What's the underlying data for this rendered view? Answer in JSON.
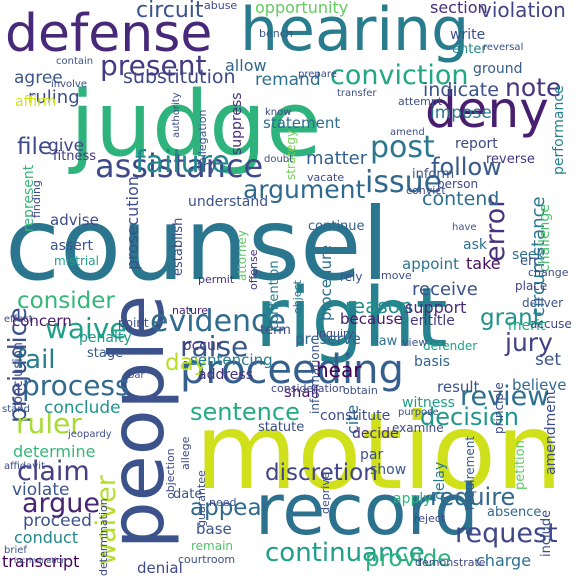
{
  "words": [
    {
      "text": "counsel",
      "color": "#2a768e"
    },
    {
      "text": "judge",
      "color": "#2eb37c"
    },
    {
      "text": "motion",
      "color": "#d0e11c"
    },
    {
      "text": "right",
      "color": "#26828e"
    },
    {
      "text": "people",
      "color": "#3b528b"
    },
    {
      "text": "record",
      "color": "#2c718e"
    },
    {
      "text": "hearing",
      "color": "#287c8e"
    },
    {
      "text": "defense",
      "color": "#482979"
    },
    {
      "text": "deny",
      "color": "#481f70"
    },
    {
      "text": "proceeding",
      "color": "#355f8d"
    },
    {
      "text": "assistance",
      "color": "#3e4989"
    },
    {
      "text": "conviction",
      "color": "#22a785"
    },
    {
      "text": "issue",
      "color": "#31688e"
    },
    {
      "text": "failure",
      "color": "#24878e"
    },
    {
      "text": "evidence",
      "color": "#2f6c8e"
    },
    {
      "text": "waive",
      "color": "#1fa088"
    },
    {
      "text": "raise",
      "color": "#38598c"
    },
    {
      "text": "process",
      "color": "#306a8e"
    },
    {
      "text": "argument",
      "color": "#30698e"
    },
    {
      "text": "present",
      "color": "#443b84"
    },
    {
      "text": "prejudice",
      "color": "#3b518b"
    },
    {
      "text": "error",
      "color": "#46327e"
    },
    {
      "text": "continuance",
      "color": "#1f9e89"
    },
    {
      "text": "ruler",
      "color": "#a8db34"
    },
    {
      "text": "waiver",
      "color": "#b5de2b"
    },
    {
      "text": "sentence",
      "color": "#25ab82"
    },
    {
      "text": "argue",
      "color": "#482475"
    },
    {
      "text": "claim",
      "color": "#433e85"
    },
    {
      "text": "review",
      "color": "#2d708e"
    },
    {
      "text": "request",
      "color": "#3f4788"
    },
    {
      "text": "decision",
      "color": "#1f988b"
    },
    {
      "text": "discretion",
      "color": "#404688"
    },
    {
      "text": "require",
      "color": "#31688e"
    },
    {
      "text": "post",
      "color": "#2a778e"
    },
    {
      "text": "consider",
      "color": "#35b779"
    },
    {
      "text": "fail",
      "color": "#277f8e"
    },
    {
      "text": "jury",
      "color": "#424086"
    },
    {
      "text": "grant",
      "color": "#21918c"
    },
    {
      "text": "circuit",
      "color": "#3a538b"
    },
    {
      "text": "day",
      "color": "#bade28"
    },
    {
      "text": "note",
      "color": "#453581"
    },
    {
      "text": "follow",
      "color": "#38598c"
    },
    {
      "text": "file",
      "color": "#3e4a89"
    },
    {
      "text": "appear",
      "color": "#2f6b8e"
    },
    {
      "text": "provide",
      "color": "#2db27d"
    },
    {
      "text": "violation",
      "color": "#414487"
    },
    {
      "text": "hear",
      "color": "#440154"
    },
    {
      "text": "reason",
      "color": "#21908d"
    },
    {
      "text": "contend",
      "color": "#2e6e8e"
    },
    {
      "text": "matter",
      "color": "#34618d"
    },
    {
      "text": "substitution",
      "color": "#3f4889"
    },
    {
      "text": "prosecution",
      "color": "#3e4c8a"
    },
    {
      "text": "remand",
      "color": "#2d718e"
    },
    {
      "text": "indicate",
      "color": "#3b518b"
    },
    {
      "text": "impose",
      "color": "#2a788e"
    },
    {
      "text": "section",
      "color": "#46307e"
    },
    {
      "text": "opportunity",
      "color": "#63cb5f"
    },
    {
      "text": "allow",
      "color": "#32658e"
    },
    {
      "text": "write",
      "color": "#3c4f8a"
    },
    {
      "text": "enter",
      "color": "#24868e"
    },
    {
      "text": "ruling",
      "color": "#3d4d8a"
    },
    {
      "text": "agree",
      "color": "#39568c"
    },
    {
      "text": "affirm",
      "color": "#d2e21b"
    },
    {
      "text": "give",
      "color": "#3e4989"
    },
    {
      "text": "fitness",
      "color": "#453781"
    },
    {
      "text": "represent",
      "color": "#37b878"
    },
    {
      "text": "advise",
      "color": "#3d4d8a"
    },
    {
      "text": "assert",
      "color": "#3a548c"
    },
    {
      "text": "mistrial",
      "color": "#20a386"
    },
    {
      "text": "concern",
      "color": "#481b6d"
    },
    {
      "text": "conclude",
      "color": "#1f968b"
    },
    {
      "text": "determine",
      "color": "#35b779"
    },
    {
      "text": "violate",
      "color": "#39568c"
    },
    {
      "text": "proceed",
      "color": "#3b518b"
    },
    {
      "text": "conduct",
      "color": "#23888e"
    },
    {
      "text": "transcript",
      "color": "#440154"
    },
    {
      "text": "because",
      "color": "#48186a"
    },
    {
      "text": "support",
      "color": "#472c7a"
    },
    {
      "text": "entitle",
      "color": "#453882"
    },
    {
      "text": "receive",
      "color": "#3b528b"
    },
    {
      "text": "take",
      "color": "#470d60"
    },
    {
      "text": "ask",
      "color": "#2c728e"
    },
    {
      "text": "seek",
      "color": "#2e6f8e"
    },
    {
      "text": "person",
      "color": "#3e4989"
    },
    {
      "text": "inform",
      "color": "#39558c"
    },
    {
      "text": "report",
      "color": "#3f4788"
    },
    {
      "text": "reverse",
      "color": "#443983"
    },
    {
      "text": "strategy",
      "color": "#75d054"
    },
    {
      "text": "suppress",
      "color": "#472e7c"
    },
    {
      "text": "statement",
      "color": "#2e6d8e"
    },
    {
      "text": "understand",
      "color": "#3b528b"
    },
    {
      "text": "continue",
      "color": "#34618d"
    },
    {
      "text": "procedure",
      "color": "#2d708e"
    },
    {
      "text": "ground",
      "color": "#365d8d"
    },
    {
      "text": "circumstance",
      "color": "#2a788e"
    },
    {
      "text": "performance",
      "color": "#26818e"
    },
    {
      "text": "challenge",
      "color": "#4ac16d"
    },
    {
      "text": "sentencing",
      "color": "#287d8e"
    },
    {
      "text": "term",
      "color": "#3f4889"
    },
    {
      "text": "occur",
      "color": "#472f7d"
    },
    {
      "text": "preserve",
      "color": "#32658e"
    },
    {
      "text": "cite",
      "color": "#2b748e"
    },
    {
      "text": "shall",
      "color": "#481769"
    },
    {
      "text": "address",
      "color": "#46337f"
    },
    {
      "text": "result",
      "color": "#3b528b"
    },
    {
      "text": "witness",
      "color": "#1f9f88"
    },
    {
      "text": "set",
      "color": "#3a548c"
    },
    {
      "text": "believe",
      "color": "#31688e"
    },
    {
      "text": "amendment",
      "color": "#3d4e8a"
    },
    {
      "text": "stage",
      "color": "#38588c"
    },
    {
      "text": "point",
      "color": "#3c4f8a"
    },
    {
      "text": "penalty",
      "color": "#1f9a8a"
    },
    {
      "text": "conclusion",
      "color": "#3e4989"
    },
    {
      "text": "effect",
      "color": "#3f4889"
    },
    {
      "text": "establish",
      "color": "#3d4d8a"
    },
    {
      "text": "attorney",
      "color": "#5cc863"
    },
    {
      "text": "offense",
      "color": "#46327e"
    },
    {
      "text": "permit",
      "color": "#46307e"
    },
    {
      "text": "nature",
      "color": "#482071"
    },
    {
      "text": "contention",
      "color": "#287c8e"
    },
    {
      "text": "object",
      "color": "#2b758e"
    },
    {
      "text": "rely",
      "color": "#3b518b"
    },
    {
      "text": "move",
      "color": "#3d4e8a"
    },
    {
      "text": "appoint",
      "color": "#2c738e"
    },
    {
      "text": "defender",
      "color": "#1fa287"
    },
    {
      "text": "deliver",
      "color": "#3a548c"
    },
    {
      "text": "merit",
      "color": "#26ad81"
    },
    {
      "text": "accuse",
      "color": "#3f4788"
    },
    {
      "text": "place",
      "color": "#404588"
    },
    {
      "text": "change",
      "color": "#3e4c8a"
    },
    {
      "text": "err",
      "color": "#39558c"
    },
    {
      "text": "law",
      "color": "#2d708e"
    },
    {
      "text": "basis",
      "color": "#32658e"
    },
    {
      "text": "principle",
      "color": "#3e4989"
    },
    {
      "text": "view",
      "color": "#3b528b"
    },
    {
      "text": "inquiry",
      "color": "#3e4c8a"
    },
    {
      "text": "information",
      "color": "#3a548c"
    },
    {
      "text": "obtain",
      "color": "#3b528b"
    },
    {
      "text": "consideration",
      "color": "#3f4788"
    },
    {
      "text": "decide",
      "color": "#46327e"
    },
    {
      "text": "examine",
      "color": "#3e4989"
    },
    {
      "text": "constitute",
      "color": "#3c4f8a"
    },
    {
      "text": "statute",
      "color": "#3d4d8a"
    },
    {
      "text": "par",
      "color": "#3c508b"
    },
    {
      "text": "delay",
      "color": "#2a778e"
    },
    {
      "text": "deprive",
      "color": "#3d4e8a"
    },
    {
      "text": "show",
      "color": "#39558c"
    },
    {
      "text": "apply",
      "color": "#2eb37c"
    },
    {
      "text": "requirement",
      "color": "#38598c"
    },
    {
      "text": "reject",
      "color": "#3e4a89"
    },
    {
      "text": "petition",
      "color": "#5ec962"
    },
    {
      "text": "include",
      "color": "#3c508b"
    },
    {
      "text": "absence",
      "color": "#30698e"
    },
    {
      "text": "charge",
      "color": "#2c718e"
    },
    {
      "text": "demonstrate",
      "color": "#3f4889"
    },
    {
      "text": "denial",
      "color": "#3e4989"
    },
    {
      "text": "base",
      "color": "#3a548c"
    },
    {
      "text": "date",
      "color": "#3b528b"
    },
    {
      "text": "remain",
      "color": "#4fc369"
    },
    {
      "text": "need",
      "color": "#3e4c8a"
    },
    {
      "text": "courtroom",
      "color": "#3c508b"
    },
    {
      "text": "guarantee",
      "color": "#3d4d8a"
    },
    {
      "text": "determination",
      "color": "#3f4788"
    },
    {
      "text": "objection",
      "color": "#3e4989"
    },
    {
      "text": "allege",
      "color": "#3e4a89"
    },
    {
      "text": "jeopardy",
      "color": "#3d4e8a"
    },
    {
      "text": "affidavit",
      "color": "#3e4989"
    },
    {
      "text": "stand",
      "color": "#39568c"
    },
    {
      "text": "brief",
      "color": "#3b528b"
    },
    {
      "text": "incrimination",
      "color": "#3d4d8a"
    },
    {
      "text": "purpose",
      "color": "#3c4f8a"
    },
    {
      "text": "bar",
      "color": "#3e4a89"
    },
    {
      "text": "bench",
      "color": "#39568c"
    },
    {
      "text": "abuse",
      "color": "#3e4989"
    },
    {
      "text": "contain",
      "color": "#3c508b"
    },
    {
      "text": "involve",
      "color": "#3e4c8a"
    },
    {
      "text": "authority",
      "color": "#3d4e8a"
    },
    {
      "text": "allegation",
      "color": "#3b528b"
    },
    {
      "text": "know",
      "color": "#3e4a89"
    },
    {
      "text": "prepare",
      "color": "#3e4989"
    },
    {
      "text": "transfer",
      "color": "#3c508b"
    },
    {
      "text": "attempt",
      "color": "#3e4c8a"
    },
    {
      "text": "amend",
      "color": "#3d4d8a"
    },
    {
      "text": "vacate",
      "color": "#3e4989"
    },
    {
      "text": "doubt",
      "color": "#3c4f8a"
    },
    {
      "text": "convict",
      "color": "#3e4a89"
    },
    {
      "text": "have",
      "color": "#3b528b"
    },
    {
      "text": "reversal",
      "color": "#3c508b"
    },
    {
      "text": "finding",
      "color": "#3e4989"
    },
    {
      "text": "try",
      "color": "#3b528b"
    }
  ]
}
